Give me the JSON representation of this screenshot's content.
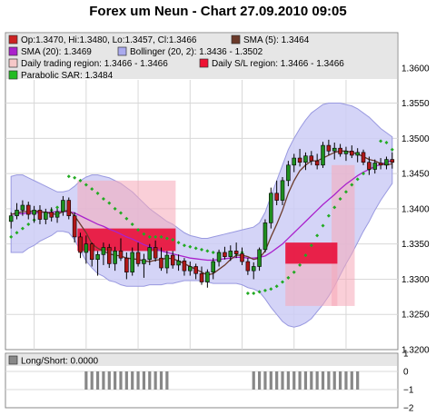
{
  "title": "Forex um Neun - Chart 27.09.2010 09:05",
  "legend": [
    {
      "text": "Op:1.3470, Hi:1.3480, Lo:1.3457, Cl:1.3466",
      "color": "#cc2222"
    },
    {
      "text": "SMA (5): 1.3464",
      "color": "#6b3a2a"
    },
    {
      "text": "SMA (20): 1.3469",
      "color": "#aa22cc"
    },
    {
      "text": "Bollinger (20, 2): 1.3436 - 1.3502",
      "color": "#aaaaee"
    },
    {
      "text": "Daily trading region: 1.3466 - 1.3466",
      "color": "#f6c8c8"
    },
    {
      "text": "Daily S/L region: 1.3466 - 1.3466",
      "color": "#ee1133"
    },
    {
      "text": "Parabolic SAR: 1.3484",
      "color": "#22bb22"
    }
  ],
  "lower_legend": "Long/Short: 0.0000",
  "chart_data": [
    {
      "type": "candlestick",
      "ylim": [
        1.32,
        1.365
      ],
      "yticks": [
        "1.3200",
        "1.3250",
        "1.3300",
        "1.3350",
        "1.3400",
        "1.3450",
        "1.3500",
        "1.3550",
        "1.3600"
      ],
      "candles": [
        [
          1.3382,
          1.3395,
          1.3372,
          1.339
        ],
        [
          1.339,
          1.3408,
          1.3385,
          1.3398
        ],
        [
          1.3398,
          1.3412,
          1.339,
          1.3405
        ],
        [
          1.3405,
          1.341,
          1.3385,
          1.3392
        ],
        [
          1.3392,
          1.3404,
          1.338,
          1.3398
        ],
        [
          1.3398,
          1.3405,
          1.3378,
          1.3385
        ],
        [
          1.3385,
          1.34,
          1.3378,
          1.3395
        ],
        [
          1.3395,
          1.3402,
          1.3382,
          1.3388
        ],
        [
          1.3388,
          1.34,
          1.338,
          1.3396
        ],
        [
          1.3396,
          1.3418,
          1.339,
          1.3412
        ],
        [
          1.3412,
          1.3416,
          1.3385,
          1.339
        ],
        [
          1.339,
          1.3395,
          1.3352,
          1.336
        ],
        [
          1.336,
          1.3366,
          1.333,
          1.3338
        ],
        [
          1.3338,
          1.3362,
          1.3322,
          1.335
        ],
        [
          1.335,
          1.3352,
          1.3318,
          1.3328
        ],
        [
          1.3328,
          1.334,
          1.3305,
          1.3335
        ],
        [
          1.3335,
          1.3352,
          1.332,
          1.3345
        ],
        [
          1.3345,
          1.335,
          1.3316,
          1.3322
        ],
        [
          1.3322,
          1.3346,
          1.3312,
          1.334
        ],
        [
          1.334,
          1.3358,
          1.3326,
          1.333
        ],
        [
          1.333,
          1.3338,
          1.33,
          1.331
        ],
        [
          1.331,
          1.3345,
          1.3305,
          1.3338
        ],
        [
          1.3338,
          1.3352,
          1.3318,
          1.3322
        ],
        [
          1.3322,
          1.3336,
          1.3302,
          1.3328
        ],
        [
          1.3328,
          1.335,
          1.332,
          1.3345
        ],
        [
          1.3345,
          1.3355,
          1.3325,
          1.333
        ],
        [
          1.333,
          1.3345,
          1.3312,
          1.3316
        ],
        [
          1.3316,
          1.334,
          1.3308,
          1.3334
        ],
        [
          1.3334,
          1.334,
          1.3315,
          1.332
        ],
        [
          1.332,
          1.3335,
          1.3312,
          1.3326
        ],
        [
          1.3326,
          1.333,
          1.3305,
          1.3312
        ],
        [
          1.3312,
          1.3325,
          1.3305,
          1.3318
        ],
        [
          1.3318,
          1.3322,
          1.33,
          1.3308
        ],
        [
          1.3308,
          1.3318,
          1.3292,
          1.3296
        ],
        [
          1.3296,
          1.3314,
          1.3288,
          1.331
        ],
        [
          1.331,
          1.333,
          1.33,
          1.3325
        ],
        [
          1.3325,
          1.3342,
          1.3318,
          1.3338
        ],
        [
          1.3338,
          1.3346,
          1.3328,
          1.3332
        ],
        [
          1.3332,
          1.3348,
          1.3326,
          1.334
        ],
        [
          1.334,
          1.3352,
          1.333,
          1.3336
        ],
        [
          1.3336,
          1.3345,
          1.332,
          1.3325
        ],
        [
          1.3325,
          1.333,
          1.3306,
          1.3312
        ],
        [
          1.3312,
          1.3324,
          1.33,
          1.3318
        ],
        [
          1.3318,
          1.3345,
          1.3312,
          1.3342
        ],
        [
          1.3342,
          1.3385,
          1.3338,
          1.338
        ],
        [
          1.338,
          1.343,
          1.3372,
          1.3422
        ],
        [
          1.3422,
          1.344,
          1.3405,
          1.3412
        ],
        [
          1.3412,
          1.3445,
          1.3405,
          1.344
        ],
        [
          1.344,
          1.3468,
          1.3432,
          1.3462
        ],
        [
          1.3462,
          1.3478,
          1.3452,
          1.3472
        ],
        [
          1.3472,
          1.3485,
          1.346,
          1.3466
        ],
        [
          1.3466,
          1.348,
          1.3455,
          1.3475
        ],
        [
          1.3475,
          1.3482,
          1.3462,
          1.3468
        ],
        [
          1.3468,
          1.3478,
          1.3456,
          1.3462
        ],
        [
          1.3462,
          1.3495,
          1.3458,
          1.349
        ],
        [
          1.349,
          1.3498,
          1.3476,
          1.3482
        ],
        [
          1.3482,
          1.3494,
          1.347,
          1.3486
        ],
        [
          1.3486,
          1.3492,
          1.3474,
          1.3478
        ],
        [
          1.3478,
          1.3488,
          1.3468,
          1.3482
        ],
        [
          1.3482,
          1.349,
          1.3472,
          1.3476
        ],
        [
          1.3476,
          1.3486,
          1.3466,
          1.348
        ],
        [
          1.348,
          1.3484,
          1.3462,
          1.3466
        ],
        [
          1.3466,
          1.3474,
          1.3448,
          1.3456
        ],
        [
          1.3456,
          1.347,
          1.345,
          1.3465
        ],
        [
          1.3465,
          1.3472,
          1.3456,
          1.3462
        ],
        [
          1.3462,
          1.3474,
          1.3456,
          1.347
        ],
        [
          1.347,
          1.348,
          1.3457,
          1.3466
        ]
      ],
      "sma5": [
        1.3392,
        1.3394,
        1.3396,
        1.3396,
        1.3397,
        1.3396,
        1.3395,
        1.3393,
        1.3392,
        1.3396,
        1.3398,
        1.339,
        1.3378,
        1.3366,
        1.335,
        1.3344,
        1.334,
        1.3336,
        1.3334,
        1.3333,
        1.333,
        1.3329,
        1.3328,
        1.3326,
        1.3325,
        1.3327,
        1.3328,
        1.333,
        1.3329,
        1.3326,
        1.3322,
        1.3318,
        1.3314,
        1.331,
        1.3306,
        1.3308,
        1.3314,
        1.332,
        1.3328,
        1.3334,
        1.3334,
        1.3332,
        1.3328,
        1.333,
        1.334,
        1.336,
        1.3378,
        1.3398,
        1.3422,
        1.344,
        1.3454,
        1.3462,
        1.3468,
        1.3468,
        1.3472,
        1.3476,
        1.348,
        1.3482,
        1.3482,
        1.348,
        1.3478,
        1.3474,
        1.347,
        1.3468,
        1.3464,
        1.3462,
        1.3464
      ],
      "sma20": [
        1.3392,
        1.3393,
        1.3393,
        1.3394,
        1.3394,
        1.3395,
        1.3395,
        1.3395,
        1.3396,
        1.3396,
        1.3396,
        1.3394,
        1.339,
        1.3386,
        1.3382,
        1.3378,
        1.3375,
        1.3371,
        1.3368,
        1.3364,
        1.336,
        1.3357,
        1.3353,
        1.3349,
        1.3346,
        1.3343,
        1.334,
        1.3338,
        1.3336,
        1.3334,
        1.3332,
        1.333,
        1.3329,
        1.3328,
        1.3327,
        1.3327,
        1.3328,
        1.3329,
        1.333,
        1.3331,
        1.3331,
        1.333,
        1.333,
        1.3331,
        1.3333,
        1.3338,
        1.3344,
        1.335,
        1.3358,
        1.3366,
        1.3374,
        1.3382,
        1.339,
        1.3398,
        1.3406,
        1.3413,
        1.342,
        1.3428,
        1.3435,
        1.3441,
        1.3447,
        1.3452,
        1.3456,
        1.346,
        1.3463,
        1.3466,
        1.3469
      ],
      "bollinger_upper": [
        1.3446,
        1.3448,
        1.3448,
        1.3444,
        1.344,
        1.3436,
        1.3432,
        1.3428,
        1.3424,
        1.3424,
        1.3426,
        1.3432,
        1.344,
        1.3445,
        1.3448,
        1.3448,
        1.3446,
        1.3444,
        1.344,
        1.3436,
        1.343,
        1.3424,
        1.3416,
        1.3408,
        1.34,
        1.3394,
        1.3388,
        1.3382,
        1.3378,
        1.3372,
        1.3366,
        1.3362,
        1.336,
        1.3358,
        1.3358,
        1.336,
        1.3362,
        1.3364,
        1.3366,
        1.3368,
        1.337,
        1.3372,
        1.3374,
        1.338,
        1.3395,
        1.3418,
        1.344,
        1.3462,
        1.3484,
        1.35,
        1.3514,
        1.3526,
        1.3536,
        1.3542,
        1.3548,
        1.355,
        1.355,
        1.355,
        1.3548,
        1.3546,
        1.3542,
        1.3536,
        1.353,
        1.3522,
        1.3514,
        1.3508,
        1.3502
      ],
      "bollinger_lower": [
        1.3338,
        1.3338,
        1.3338,
        1.3344,
        1.3348,
        1.3354,
        1.3358,
        1.3362,
        1.3368,
        1.3368,
        1.3366,
        1.3356,
        1.334,
        1.3326,
        1.3316,
        1.3308,
        1.3304,
        1.3298,
        1.3296,
        1.3292,
        1.329,
        1.329,
        1.329,
        1.329,
        1.3292,
        1.3292,
        1.3292,
        1.3294,
        1.3294,
        1.3296,
        1.3298,
        1.3298,
        1.3298,
        1.3298,
        1.3296,
        1.3294,
        1.3294,
        1.3294,
        1.3294,
        1.3294,
        1.3292,
        1.3288,
        1.3286,
        1.3282,
        1.3272,
        1.326,
        1.325,
        1.324,
        1.3234,
        1.3232,
        1.3234,
        1.3238,
        1.3244,
        1.3254,
        1.3264,
        1.3276,
        1.329,
        1.3306,
        1.3322,
        1.3336,
        1.3352,
        1.3368,
        1.3382,
        1.3398,
        1.3412,
        1.3424,
        1.3436
      ],
      "sar": [
        [
          0,
          1.336
        ],
        [
          1,
          1.3366
        ],
        [
          2,
          1.3372
        ],
        [
          3,
          1.3378
        ],
        [
          4,
          1.3384
        ],
        [
          5,
          1.339
        ],
        [
          6,
          1.3394
        ],
        [
          7,
          1.3398
        ],
        [
          8,
          1.3402
        ],
        [
          9,
          1.3406
        ],
        [
          10,
          1.3446
        ],
        [
          11,
          1.3444
        ],
        [
          12,
          1.344
        ],
        [
          13,
          1.3434
        ],
        [
          14,
          1.3428
        ],
        [
          15,
          1.3422
        ],
        [
          16,
          1.3414
        ],
        [
          17,
          1.3408
        ],
        [
          18,
          1.34
        ],
        [
          19,
          1.3394
        ],
        [
          20,
          1.3386
        ],
        [
          21,
          1.3378
        ],
        [
          22,
          1.337
        ],
        [
          23,
          1.3364
        ],
        [
          24,
          1.336
        ],
        [
          25,
          1.336
        ],
        [
          26,
          1.336
        ],
        [
          27,
          1.3358
        ],
        [
          28,
          1.3356
        ],
        [
          29,
          1.3352
        ],
        [
          30,
          1.3348
        ],
        [
          31,
          1.3346
        ],
        [
          32,
          1.3344
        ],
        [
          33,
          1.3342
        ],
        [
          34,
          1.334
        ],
        [
          35,
          1.3338
        ],
        [
          36,
          1.3337
        ],
        [
          37,
          1.3336
        ],
        [
          38,
          1.3335
        ],
        [
          39,
          1.3336
        ],
        [
          40,
          1.3338
        ],
        [
          41,
          1.328
        ],
        [
          42,
          1.328
        ],
        [
          43,
          1.3282
        ],
        [
          44,
          1.3284
        ],
        [
          45,
          1.3286
        ],
        [
          46,
          1.329
        ],
        [
          47,
          1.3296
        ],
        [
          48,
          1.3302
        ],
        [
          49,
          1.331
        ],
        [
          50,
          1.332
        ],
        [
          51,
          1.3334
        ],
        [
          52,
          1.3348
        ],
        [
          53,
          1.3362
        ],
        [
          54,
          1.3376
        ],
        [
          55,
          1.339
        ],
        [
          56,
          1.3402
        ],
        [
          57,
          1.3414
        ],
        [
          58,
          1.3424
        ],
        [
          59,
          1.3434
        ],
        [
          60,
          1.3442
        ],
        [
          61,
          1.345
        ],
        [
          62,
          1.3456
        ],
        [
          63,
          1.3462
        ],
        [
          64,
          1.3496
        ],
        [
          65,
          1.3494
        ],
        [
          66,
          1.3484
        ]
      ],
      "trading_regions": [
        {
          "from": 12,
          "to": 28,
          "y1": 1.344,
          "y2": 1.334
        },
        {
          "from": 48,
          "to": 56,
          "y1": 1.3346,
          "y2": 1.3262
        },
        {
          "from": 56,
          "to": 59,
          "y1": 1.3462,
          "y2": 1.3262
        }
      ],
      "sl_regions": [
        {
          "from": 12,
          "to": 28,
          "y1": 1.3372,
          "y2": 1.334
        },
        {
          "from": 48,
          "to": 56,
          "y1": 1.3352,
          "y2": 1.3322
        }
      ]
    },
    {
      "type": "bar",
      "ylim": [
        -2,
        1
      ],
      "yticks": [
        "1",
        "0",
        "−1",
        "−2"
      ],
      "bars": [
        {
          "from": 13,
          "to": 27,
          "y1": 0,
          "y2": -1
        },
        {
          "from": 42,
          "to": 60,
          "y1": 0,
          "y2": -1
        }
      ]
    }
  ]
}
